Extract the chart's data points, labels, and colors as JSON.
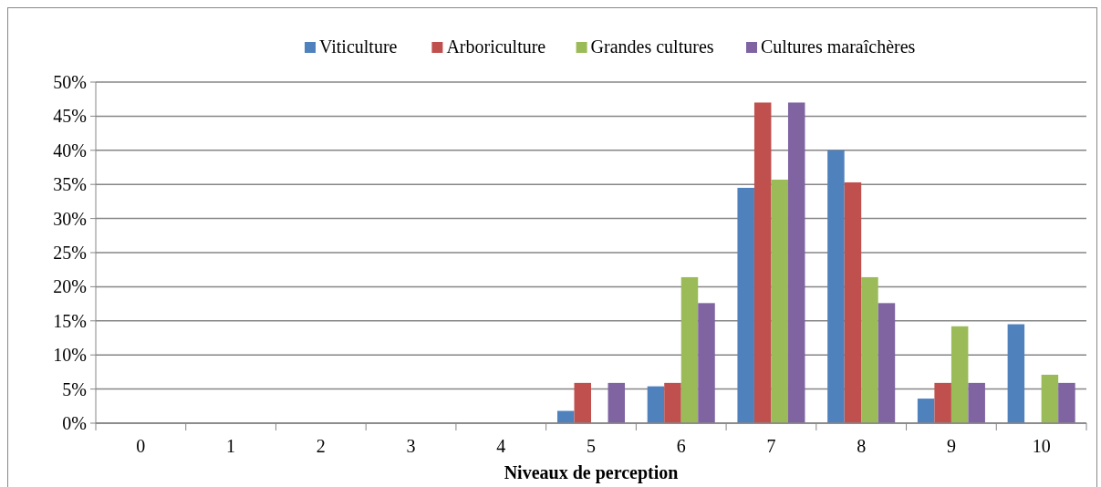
{
  "chart_data": {
    "type": "bar",
    "xlabel": "Niveaux de perception",
    "categories": [
      "0",
      "1",
      "2",
      "3",
      "4",
      "5",
      "6",
      "7",
      "8",
      "9",
      "10"
    ],
    "series": [
      {
        "name": "Viticulture",
        "color": "#4f81bd",
        "values": [
          0,
          0,
          0,
          0,
          0,
          1.8,
          5.4,
          34.5,
          40.0,
          3.6,
          14.5
        ]
      },
      {
        "name": "Arboriculture",
        "color": "#c0504d",
        "values": [
          0,
          0,
          0,
          0,
          0,
          5.9,
          5.9,
          47.0,
          35.3,
          5.9,
          0
        ]
      },
      {
        "name": "Grandes cultures",
        "color": "#9bbb59",
        "values": [
          0,
          0,
          0,
          0,
          0,
          0,
          21.4,
          35.7,
          21.4,
          14.2,
          7.1
        ]
      },
      {
        "name": "Cultures maraîchères",
        "color": "#8064a2",
        "values": [
          0,
          0,
          0,
          0,
          0,
          5.9,
          17.6,
          47.0,
          17.6,
          5.9,
          5.9
        ]
      }
    ],
    "ylim": [
      0,
      50
    ],
    "yticks": [
      {
        "value": 0,
        "label": "0%"
      },
      {
        "value": 5,
        "label": "5%"
      },
      {
        "value": 10,
        "label": "10%"
      },
      {
        "value": 15,
        "label": "15%"
      },
      {
        "value": 20,
        "label": "20%"
      },
      {
        "value": 25,
        "label": "25%"
      },
      {
        "value": 30,
        "label": "30%"
      },
      {
        "value": 35,
        "label": "35%"
      },
      {
        "value": 40,
        "label": "40%"
      },
      {
        "value": 45,
        "label": "45%"
      },
      {
        "value": 50,
        "label": "50%"
      }
    ],
    "grid": "y",
    "legend": "top"
  }
}
